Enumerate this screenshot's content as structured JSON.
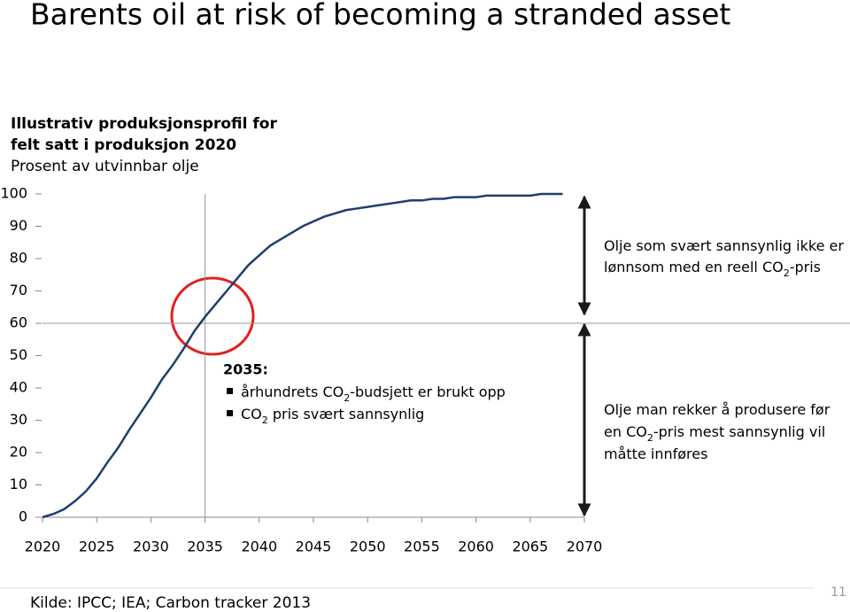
{
  "chart_data": {
    "type": "line",
    "title": "Barents oil at risk of becoming a stranded asset",
    "subtitle": [
      "Illustrativ produksjonsprofil for",
      "felt satt i produksjon 2020"
    ],
    "ylabel": "Prosent av utvinnbar olje",
    "x": [
      2020,
      2021,
      2022,
      2023,
      2024,
      2025,
      2026,
      2027,
      2028,
      2029,
      2030,
      2031,
      2032,
      2033,
      2034,
      2035,
      2036,
      2037,
      2038,
      2039,
      2040,
      2041,
      2042,
      2043,
      2044,
      2045,
      2046,
      2047,
      2048,
      2049,
      2050,
      2051,
      2052,
      2053,
      2054,
      2055,
      2056,
      2057,
      2058,
      2059,
      2060,
      2061,
      2062,
      2063,
      2064,
      2065,
      2066,
      2067,
      2068
    ],
    "series": [
      {
        "color": "#1f3e6e",
        "values": [
          0,
          1,
          2.5,
          5,
          8,
          12,
          17,
          21.6,
          27,
          32,
          37,
          42.5,
          47,
          52,
          57.5,
          62,
          66,
          70,
          74,
          78,
          81,
          84,
          86,
          88,
          90,
          91.5,
          93,
          94,
          95,
          95.5,
          96,
          96.5,
          97,
          97.5,
          98,
          98,
          98.5,
          98.5,
          99,
          99,
          99,
          99.5,
          99.5,
          99.5,
          99.5,
          99.5,
          100,
          100,
          100
        ]
      }
    ],
    "xlim": [
      2020,
      2070
    ],
    "xticks": [
      2020,
      2025,
      2030,
      2035,
      2040,
      2045,
      2050,
      2055,
      2060,
      2065,
      2070
    ],
    "ylim": [
      0,
      100
    ],
    "yticks": [
      0,
      10,
      20,
      30,
      40,
      50,
      60,
      70,
      80,
      90,
      100
    ],
    "reference_x": 2035,
    "reference_y": 60,
    "annotations": [
      {
        "title": "2035:",
        "bullets": [
          [
            {
              "text": "århundrets CO"
            },
            {
              "text": "2",
              "subscript": true
            },
            {
              "text": "-budsjett er brukt opp"
            }
          ],
          [
            {
              "text": "CO"
            },
            {
              "text": "2",
              "subscript": true
            },
            {
              "text": " pris svært sannsynlig"
            }
          ]
        ]
      },
      {
        "lines": [
          [
            {
              "text": "Olje som svært sannsynlig ikke er"
            }
          ],
          [
            {
              "text": "lønnsom med en reell CO"
            },
            {
              "text": "2",
              "subscript": true
            },
            {
              "text": "-pris"
            }
          ]
        ]
      },
      {
        "lines": [
          [
            {
              "text": "Olje man rekker å produsere før"
            }
          ],
          [
            {
              "text": "en CO"
            },
            {
              "text": "2",
              "subscript": true
            },
            {
              "text": "-pris mest sannsynlig vil"
            }
          ],
          [
            {
              "text": "måtte innføres"
            }
          ]
        ]
      }
    ],
    "source": "Kilde: IPCC; IEA; Carbon tracker 2013",
    "page_number": "11"
  }
}
